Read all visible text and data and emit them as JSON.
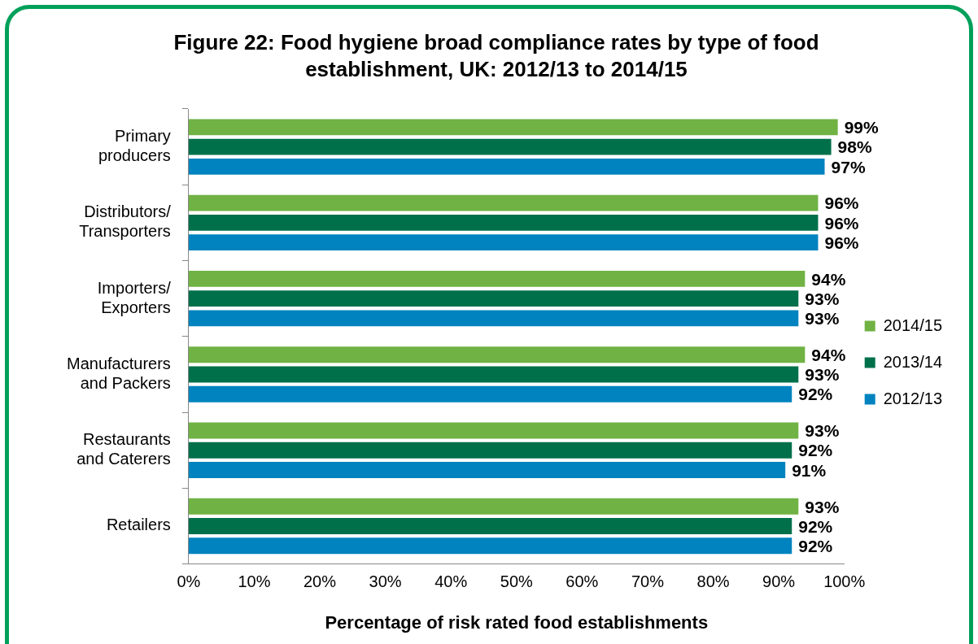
{
  "chart_data": {
    "type": "bar",
    "orientation": "horizontal",
    "title": "Figure 22: Food hygiene broad compliance rates by type of food establishment, UK: 2012/13 to 2014/15",
    "xlabel": "Percentage of risk rated food establishments",
    "categories": [
      "Primary producers",
      "Distributors/Transporters",
      "Importers/Exporters",
      "Manufacturers and Packers",
      "Restaurants and Caterers",
      "Retailers"
    ],
    "series": [
      {
        "name": "2014/15",
        "color": "#70b244",
        "values": [
          99,
          96,
          94,
          94,
          93,
          93
        ],
        "value_labels": [
          "99%",
          "96%",
          "94%",
          "94%",
          "93%",
          "93%"
        ]
      },
      {
        "name": "2013/14",
        "color": "#00704a",
        "values": [
          98,
          96,
          93,
          93,
          92,
          92
        ],
        "value_labels": [
          "98%",
          "96%",
          "93%",
          "93%",
          "92%",
          "92%"
        ]
      },
      {
        "name": "2012/13",
        "color": "#0083bf",
        "values": [
          97,
          96,
          93,
          92,
          91,
          92
        ],
        "value_labels": [
          "97%",
          "96%",
          "93%",
          "92%",
          "91%",
          "92%"
        ]
      }
    ],
    "xlim": [
      0,
      100
    ],
    "xticks": [
      {
        "value": 0,
        "label": "0%"
      },
      {
        "value": 10,
        "label": "10%"
      },
      {
        "value": 20,
        "label": "20%"
      },
      {
        "value": 30,
        "label": "30%"
      },
      {
        "value": 40,
        "label": "40%"
      },
      {
        "value": 50,
        "label": "50%"
      },
      {
        "value": 60,
        "label": "60%"
      },
      {
        "value": 70,
        "label": "70%"
      },
      {
        "value": 80,
        "label": "80%"
      },
      {
        "value": 90,
        "label": "90%"
      },
      {
        "value": 100,
        "label": "100%"
      }
    ],
    "grid": false,
    "legend": "right"
  }
}
